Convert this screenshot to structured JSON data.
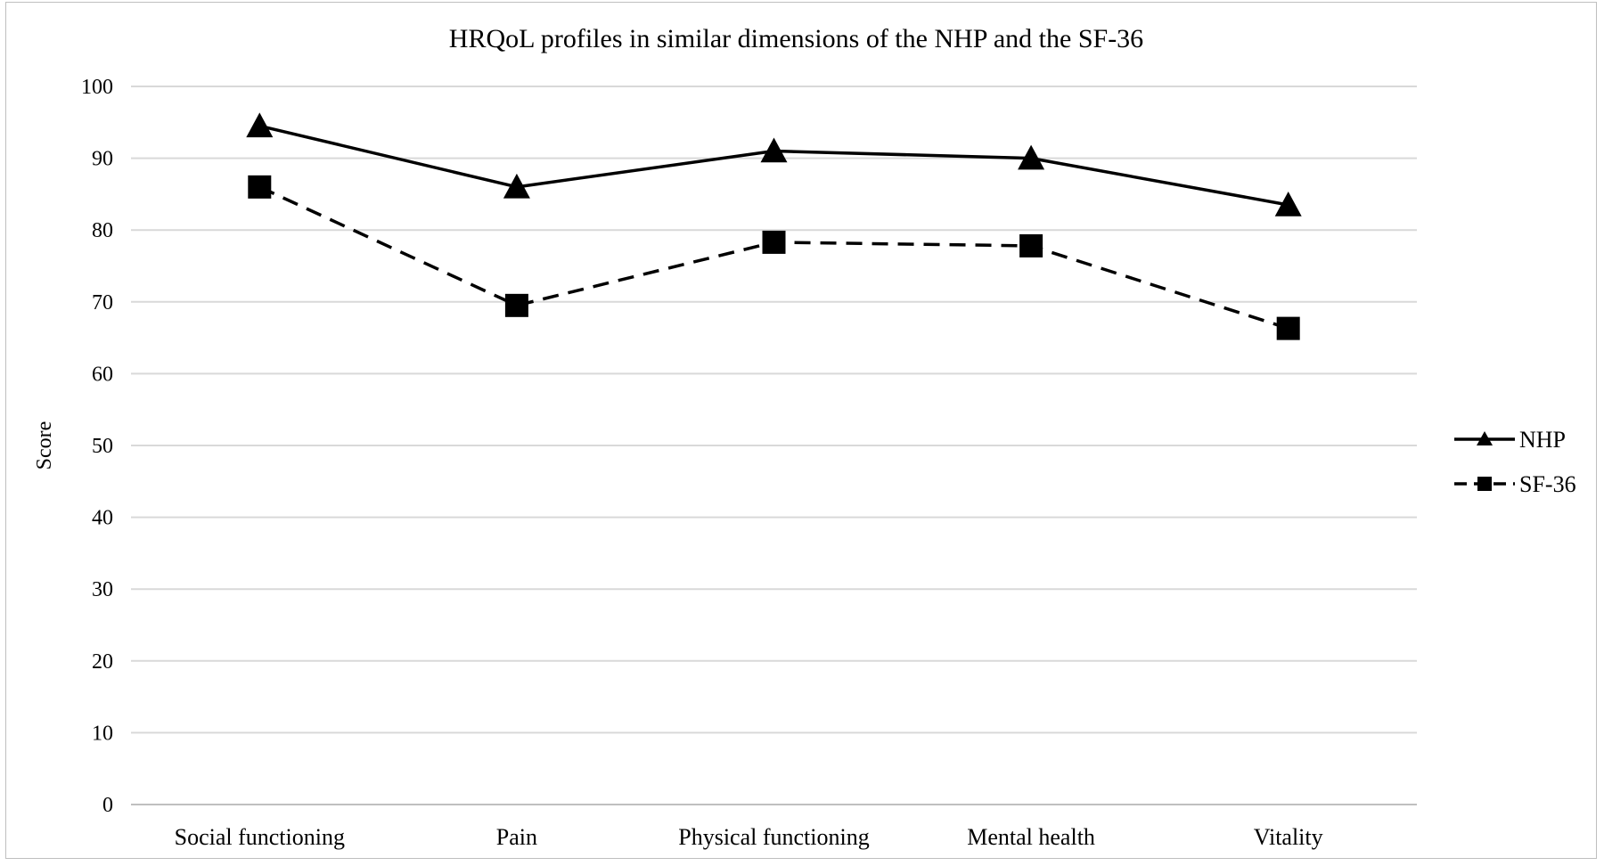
{
  "chart_data": {
    "type": "line",
    "title": "HRQoL profiles in similar dimensions of the NHP and the SF-36",
    "xlabel": "",
    "ylabel": "Score",
    "ylim": [
      0,
      100
    ],
    "yticks": [
      0,
      10,
      20,
      30,
      40,
      50,
      60,
      70,
      80,
      90,
      100
    ],
    "grid": true,
    "legend_position": "right",
    "categories": [
      "Social functioning",
      "Pain",
      "Physical functioning",
      "Mental health",
      "Vitality"
    ],
    "series": [
      {
        "name": "NHP",
        "values": [
          94.5,
          86,
          91,
          90,
          83.5
        ],
        "line_style": "solid",
        "marker": "triangle",
        "color": "#000000"
      },
      {
        "name": "SF-36",
        "values": [
          86,
          69.5,
          78.3,
          77.8,
          66.3
        ],
        "line_style": "dashed",
        "marker": "square",
        "color": "#000000"
      }
    ]
  }
}
